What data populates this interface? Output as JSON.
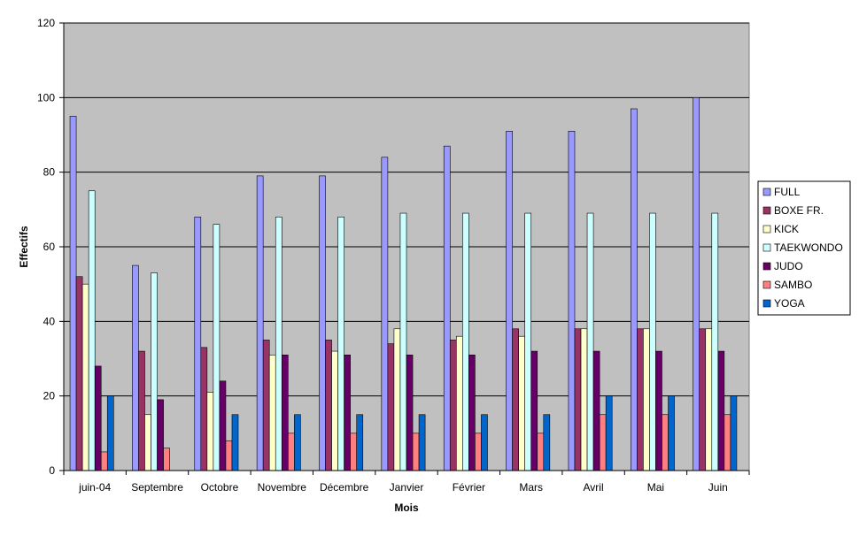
{
  "chart_data": {
    "type": "bar",
    "title": "",
    "xlabel": "Mois",
    "ylabel": "Effectifs",
    "ylim": [
      0,
      120
    ],
    "yticks": [
      0,
      20,
      40,
      60,
      80,
      100,
      120
    ],
    "grid": true,
    "legend_position": "right",
    "plot_background": "#c0c0c0",
    "categories": [
      "juin-04",
      "Septembre",
      "Octobre",
      "Novembre",
      "Décembre",
      "Janvier",
      "Février",
      "Mars",
      "Avril",
      "Mai",
      "Juin"
    ],
    "series": [
      {
        "name": "FULL",
        "color": "#9999ff",
        "values": [
          95,
          55,
          68,
          79,
          79,
          84,
          87,
          91,
          91,
          97,
          100
        ]
      },
      {
        "name": "BOXE FR.",
        "color": "#993366",
        "values": [
          52,
          32,
          33,
          35,
          35,
          34,
          35,
          38,
          38,
          38,
          38
        ]
      },
      {
        "name": "KICK",
        "color": "#ffffcc",
        "values": [
          50,
          15,
          21,
          31,
          32,
          38,
          36,
          36,
          38,
          38,
          38
        ]
      },
      {
        "name": "TAEKWONDO",
        "color": "#ccffff",
        "values": [
          75,
          53,
          66,
          68,
          68,
          69,
          69,
          69,
          69,
          69,
          69
        ]
      },
      {
        "name": "JUDO",
        "color": "#660066",
        "values": [
          28,
          19,
          24,
          31,
          31,
          31,
          31,
          32,
          32,
          32,
          32
        ]
      },
      {
        "name": "SAMBO",
        "color": "#ff8080",
        "values": [
          5,
          6,
          8,
          10,
          10,
          10,
          10,
          10,
          15,
          15,
          15
        ]
      },
      {
        "name": "YOGA",
        "color": "#0066cc",
        "values": [
          20,
          0,
          15,
          15,
          15,
          15,
          15,
          15,
          20,
          20,
          20
        ]
      }
    ]
  }
}
